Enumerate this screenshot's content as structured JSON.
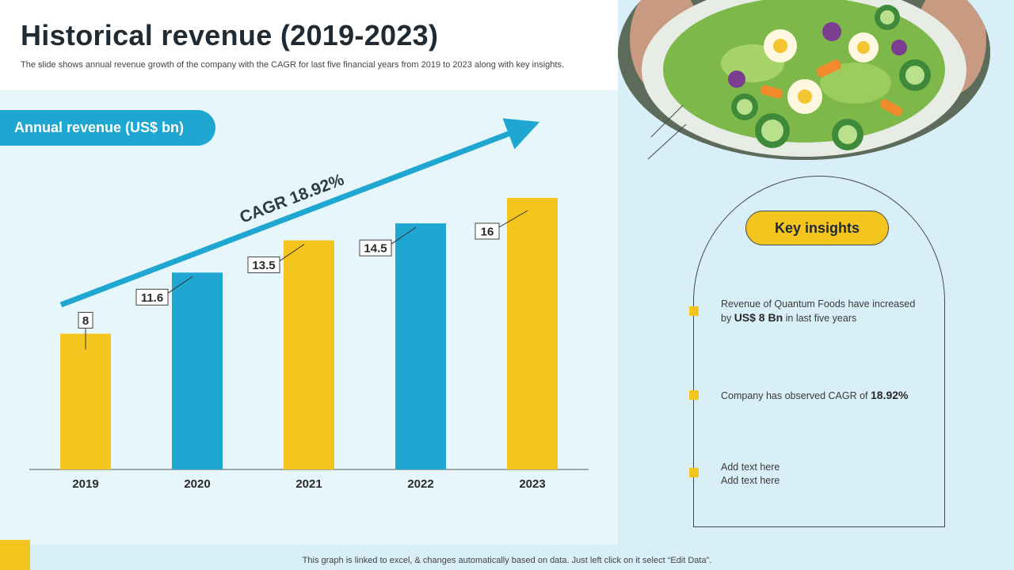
{
  "header": {
    "title": "Historical revenue (2019-2023)",
    "subtitle": "The slide shows annual revenue growth of the company with the CAGR for last five financial years from 2019 to 2023 along with key insights."
  },
  "chart_label": "Annual revenue (US$ bn)",
  "chart_data": {
    "type": "bar",
    "title": "Annual revenue (US$ bn)",
    "categories": [
      "2019",
      "2020",
      "2021",
      "2022",
      "2023"
    ],
    "values": [
      8,
      11.6,
      13.5,
      14.5,
      16
    ],
    "value_labels": [
      "8",
      "11.6",
      "13.5",
      "14.5",
      "16"
    ],
    "bar_colors": [
      "#f4c51f",
      "#1fa7d2",
      "#f4c51f",
      "#1fa7d2",
      "#f4c51f"
    ],
    "annotation": "CAGR 18.92%",
    "xlabel": "",
    "ylabel": "",
    "ylim": [
      0,
      16
    ]
  },
  "insights": {
    "heading": "Key insights",
    "items": [
      {
        "pre": "Revenue  of Quantum Foods have increased by ",
        "bold": "US$ 8 Bn",
        "post": " in last five  years"
      },
      {
        "pre": "Company has observed  CAGR of ",
        "bold": "18.92%",
        "post": ""
      },
      {
        "pre": "Add text here",
        "bold": "",
        "post": "Add text here"
      }
    ]
  },
  "footer": "This graph is linked to excel, & changes automatically based on data. Just left click on it select “Edit Data”.",
  "colors": {
    "accent_yellow": "#f4c51f",
    "accent_blue": "#1fa7d2",
    "dark": "#1f2a33"
  },
  "photo": {
    "icon": "salad-bowl-photo"
  }
}
